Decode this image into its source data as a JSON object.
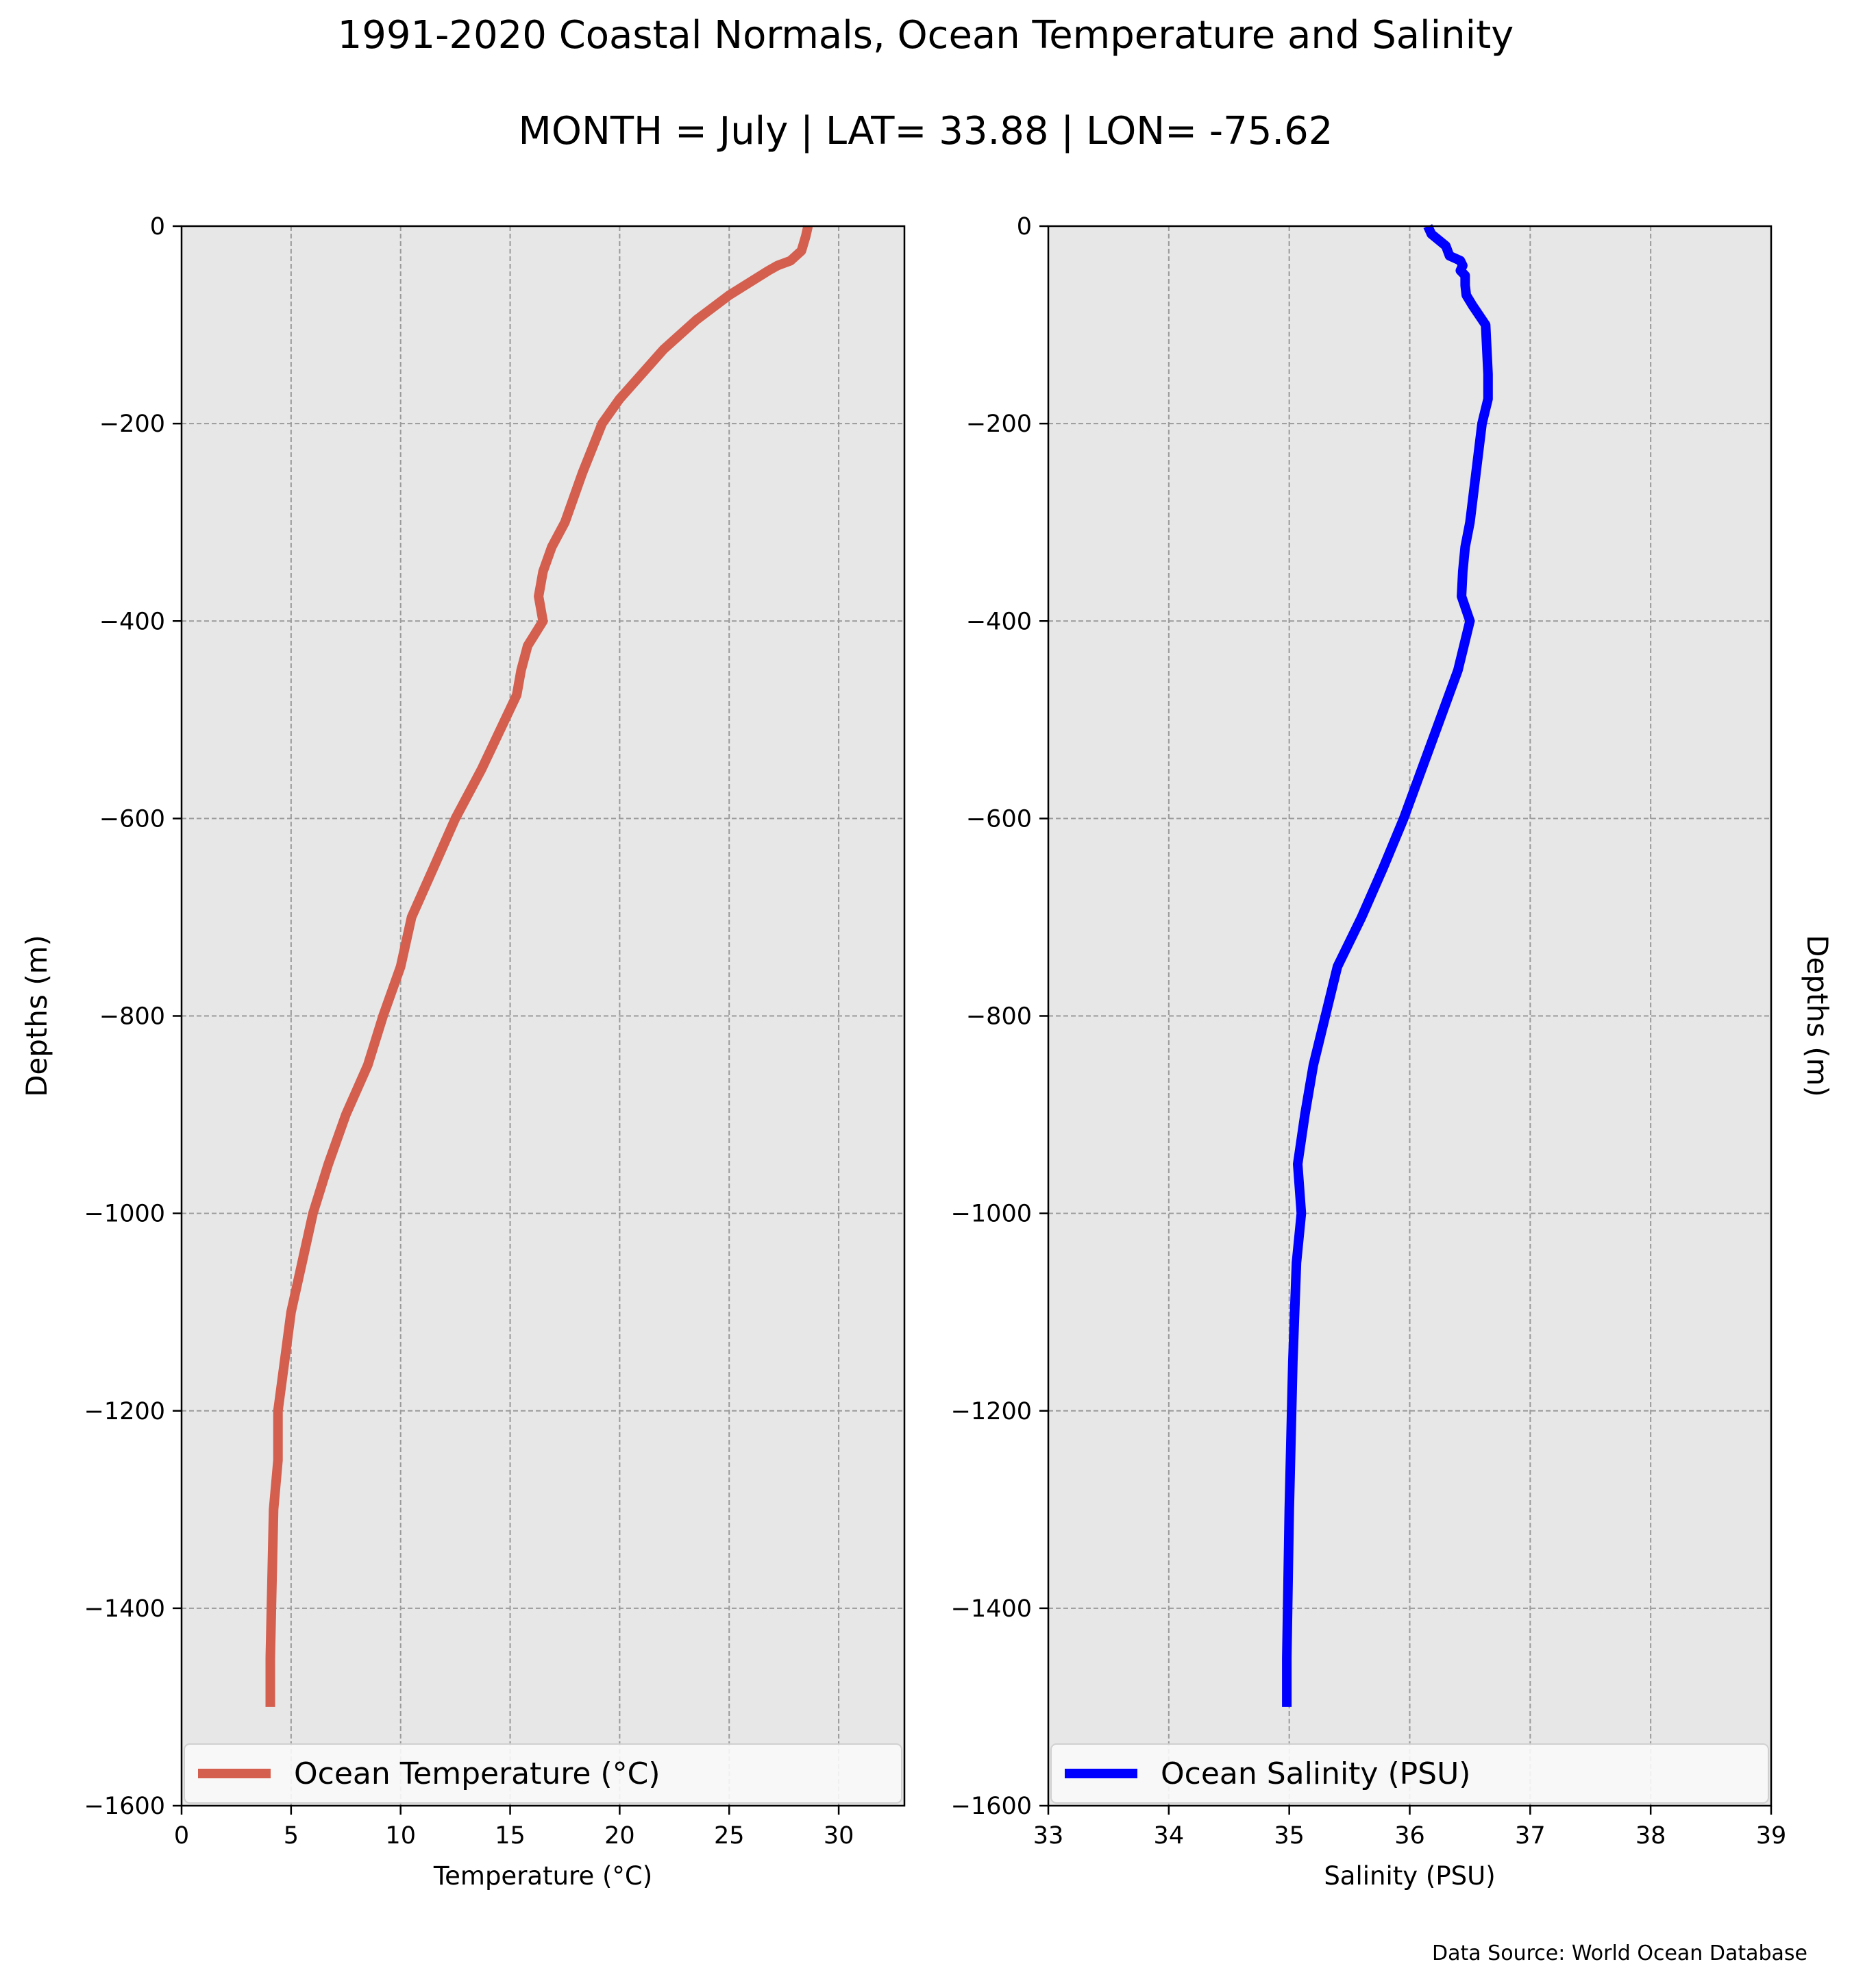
{
  "figure": {
    "title": "1991-2020 Coastal Normals, Ocean Temperature and Salinity",
    "subtitle": "MONTH = July | LAT= 33.88 | LON= -75.62",
    "source": "Data Source: World Ocean Database"
  },
  "chart_data": [
    {
      "type": "line",
      "ylabel": "Depths (m)",
      "xlabel": "Temperature ($^\\circ$C)",
      "xlabel_text": "Temperature (°C)",
      "xlim": [
        0,
        33
      ],
      "ylim": [
        -1600,
        0
      ],
      "xticks": [
        0,
        5,
        10,
        15,
        20,
        25,
        30
      ],
      "yticks": [
        0,
        -200,
        -400,
        -600,
        -800,
        -1000,
        -1200,
        -1400,
        -1600
      ],
      "ytick_labels": [
        "0",
        "−200",
        "−400",
        "−600",
        "−800",
        "−1000",
        "−1200",
        "−1400",
        "−1600"
      ],
      "grid": true,
      "legend": "bottom",
      "series": [
        {
          "name": "Ocean Temperature (°C)",
          "color": "#d45f4f",
          "points": [
            [
              28.6,
              0
            ],
            [
              28.5,
              -10
            ],
            [
              28.3,
              -25
            ],
            [
              27.8,
              -35
            ],
            [
              27.2,
              -40
            ],
            [
              26.8,
              -45
            ],
            [
              25.0,
              -70
            ],
            [
              23.5,
              -95
            ],
            [
              22.0,
              -125
            ],
            [
              20.0,
              -175
            ],
            [
              19.2,
              -200
            ],
            [
              18.3,
              -250
            ],
            [
              17.5,
              -300
            ],
            [
              16.9,
              -325
            ],
            [
              16.5,
              -350
            ],
            [
              16.3,
              -375
            ],
            [
              16.5,
              -400
            ],
            [
              15.8,
              -425
            ],
            [
              15.5,
              -450
            ],
            [
              15.3,
              -475
            ],
            [
              13.7,
              -550
            ],
            [
              12.5,
              -600
            ],
            [
              11.5,
              -650
            ],
            [
              10.5,
              -700
            ],
            [
              10.0,
              -750
            ],
            [
              9.2,
              -800
            ],
            [
              8.5,
              -850
            ],
            [
              7.5,
              -900
            ],
            [
              6.7,
              -950
            ],
            [
              6.0,
              -1000
            ],
            [
              5.5,
              -1050
            ],
            [
              5.0,
              -1100
            ],
            [
              4.7,
              -1150
            ],
            [
              4.4,
              -1200
            ],
            [
              4.4,
              -1250
            ],
            [
              4.2,
              -1300
            ],
            [
              4.1,
              -1400
            ],
            [
              4.05,
              -1450
            ],
            [
              4.05,
              -1500
            ]
          ]
        }
      ]
    },
    {
      "type": "line",
      "ylabel": "Depths (m)",
      "xlabel": "Salinity (PSU)",
      "xlim": [
        33,
        39
      ],
      "ylim": [
        -1600,
        0
      ],
      "xticks": [
        33,
        34,
        35,
        36,
        37,
        38,
        39
      ],
      "yticks": [
        0,
        -200,
        -400,
        -600,
        -800,
        -1000,
        -1200,
        -1400,
        -1600
      ],
      "ytick_labels": [
        "0",
        "−200",
        "−400",
        "−600",
        "−800",
        "−1000",
        "−1200",
        "−1400",
        "−1600"
      ],
      "grid": true,
      "legend": "bottom",
      "series": [
        {
          "name": "Ocean Salinity (PSU)",
          "color": "#0000ff",
          "points": [
            [
              36.15,
              0
            ],
            [
              36.18,
              -8
            ],
            [
              36.3,
              -20
            ],
            [
              36.33,
              -30
            ],
            [
              36.42,
              -35
            ],
            [
              36.44,
              -40
            ],
            [
              36.42,
              -45
            ],
            [
              36.46,
              -50
            ],
            [
              36.46,
              -60
            ],
            [
              36.47,
              -70
            ],
            [
              36.52,
              -80
            ],
            [
              36.63,
              -100
            ],
            [
              36.65,
              -150
            ],
            [
              36.65,
              -175
            ],
            [
              36.6,
              -200
            ],
            [
              36.55,
              -250
            ],
            [
              36.5,
              -300
            ],
            [
              36.46,
              -325
            ],
            [
              36.44,
              -350
            ],
            [
              36.43,
              -375
            ],
            [
              36.5,
              -400
            ],
            [
              36.4,
              -450
            ],
            [
              36.25,
              -500
            ],
            [
              36.1,
              -550
            ],
            [
              35.95,
              -600
            ],
            [
              35.78,
              -650
            ],
            [
              35.6,
              -700
            ],
            [
              35.4,
              -750
            ],
            [
              35.3,
              -800
            ],
            [
              35.2,
              -850
            ],
            [
              35.13,
              -900
            ],
            [
              35.07,
              -950
            ],
            [
              35.1,
              -1000
            ],
            [
              35.06,
              -1050
            ],
            [
              35.03,
              -1150
            ],
            [
              35.0,
              -1300
            ],
            [
              34.98,
              -1450
            ],
            [
              34.98,
              -1500
            ]
          ]
        }
      ]
    }
  ]
}
